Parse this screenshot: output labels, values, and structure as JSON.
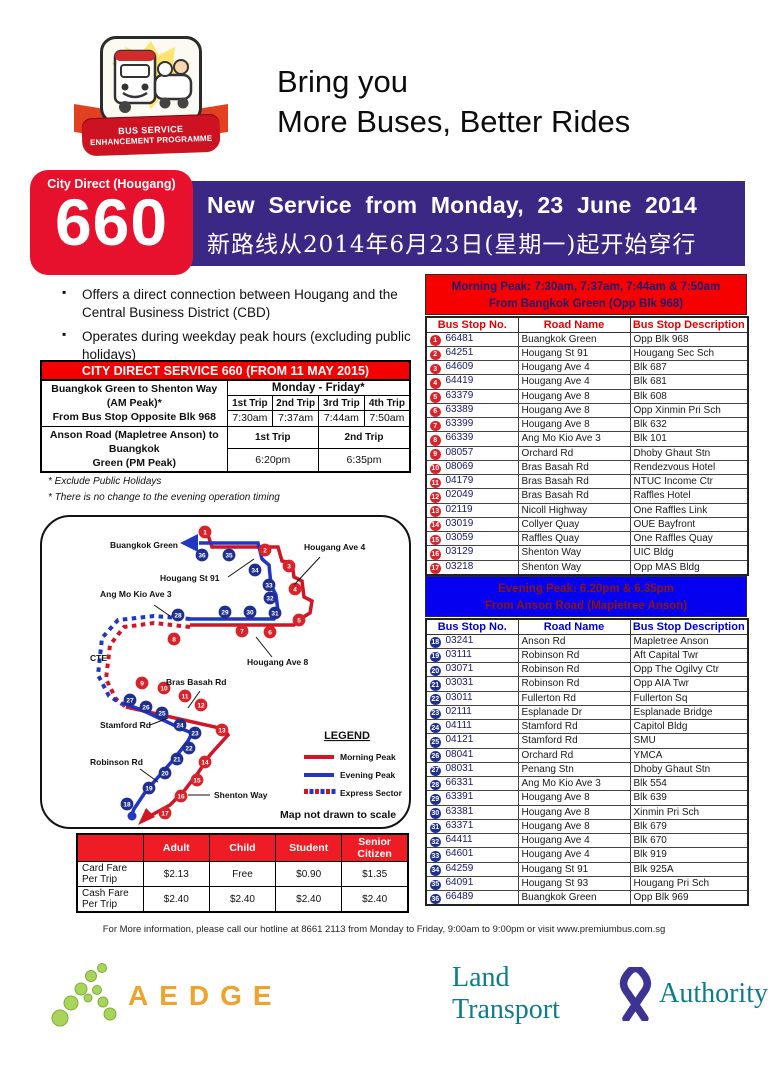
{
  "header": {
    "logo_line1": "BUS SERVICE",
    "logo_line2": "ENHANCEMENT PROGRAMME",
    "tagline_line1": "Bring you",
    "tagline_line2": "More Buses, Better Rides"
  },
  "banner": {
    "service_label": "City Direct (Hougang)",
    "service_number": "660",
    "title_en": "New Service from Monday, 23 June 2014",
    "title_zh": "新路线从2014年6月23日(星期一)起开始穿行",
    "band_color": "#3b2884",
    "badge_color": "#e8112d"
  },
  "intro_bullets": [
    "Offers a direct connection between Hougang and the Central Business District (CBD)",
    "Operates during weekday peak hours (excluding public holidays)"
  ],
  "timetable": {
    "title": "CITY DIRECT SERVICE 660 (FROM 11 MAY 2015)",
    "weekday_header": "Monday - Friday*",
    "am_route_line1": "Buangkok Green to Shenton Way (AM Peak)*",
    "am_route_line2": "From Bus Stop Opposite Blk 968",
    "am_trip_labels": [
      "1st Trip",
      "2nd Trip",
      "3rd Trip",
      "4th Trip"
    ],
    "am_trip_times": [
      "7:30am",
      "7:37am",
      "7:44am",
      "7:50am"
    ],
    "pm_route_line1": "Anson Road (Mapletree Anson) to Buangkok",
    "pm_route_line2": "Green (PM Peak)",
    "pm_trip_labels": [
      "1st Trip",
      "2nd Trip"
    ],
    "pm_trip_times": [
      "6:20pm",
      "6:35pm"
    ],
    "footnotes": [
      "* Exclude Public Holidays",
      "* There is no change to the evening operation timing"
    ]
  },
  "map": {
    "labels": {
      "buangkok": "Buangkok Green",
      "ave4": "Hougang Ave 4",
      "st91": "Hougang St 91",
      "amk": "Ang Mo Kio Ave 3",
      "cte": "CTE",
      "ave8": "Hougang Ave 8",
      "bras": "Bras Basah Rd",
      "stamford": "Stamford Rd",
      "robinson": "Robinson Rd",
      "shenton": "Shenton Way"
    },
    "legend": {
      "title": "LEGEND",
      "items": [
        "Morning Peak",
        "Evening Peak",
        "Express Sector"
      ]
    },
    "note": "Map not drawn to scale",
    "morning_color": "#d01525",
    "evening_color": "#2236c4"
  },
  "fares": {
    "columns": [
      "Adult",
      "Child",
      "Student",
      "Senior Citizen"
    ],
    "rows": [
      {
        "label": "Card Fare Per Trip",
        "values": [
          "$2.13",
          "Free",
          "$0.90",
          "$1.35"
        ]
      },
      {
        "label": "Cash Fare Per Trip",
        "values": [
          "$2.40",
          "$2.40",
          "$2.40",
          "$2.40"
        ]
      }
    ]
  },
  "morning_table": {
    "header_line1": "Morning Peak: 7:30am, 7:37am, 7:44am & 7:50am",
    "header_line2": "From Bangkok Green (Opp Blk 968)",
    "columns": [
      "Bus Stop No.",
      "Road Name",
      "Bus Stop Description"
    ],
    "stops": [
      {
        "seq": 1,
        "no": "66481",
        "road": "Buangkok Green",
        "desc": "Opp Blk 968"
      },
      {
        "seq": 2,
        "no": "64251",
        "road": "Hougang St 91",
        "desc": "Hougang Sec Sch"
      },
      {
        "seq": 3,
        "no": "64609",
        "road": "Hougang Ave 4",
        "desc": "Blk 687"
      },
      {
        "seq": 4,
        "no": "64419",
        "road": "Hougang Ave 4",
        "desc": "Blk 681"
      },
      {
        "seq": 5,
        "no": "63379",
        "road": "Hougang Ave 8",
        "desc": "Blk 608"
      },
      {
        "seq": 6,
        "no": "63389",
        "road": "Hougang Ave 8",
        "desc": "Opp Xinmin Pri Sch"
      },
      {
        "seq": 7,
        "no": "63399",
        "road": "Hougang Ave 8",
        "desc": "Blk 632"
      },
      {
        "seq": 8,
        "no": "66339",
        "road": "Ang Mo Kio Ave 3",
        "desc": "Blk 101"
      },
      {
        "seq": 9,
        "no": "08057",
        "road": "Orchard Rd",
        "desc": "Dhoby Ghaut Stn"
      },
      {
        "seq": 10,
        "no": "08069",
        "road": "Bras Basah Rd",
        "desc": "Rendezvous Hotel"
      },
      {
        "seq": 11,
        "no": "04179",
        "road": "Bras Basah Rd",
        "desc": "NTUC Income Ctr"
      },
      {
        "seq": 12,
        "no": "02049",
        "road": "Bras Basah Rd",
        "desc": "Raffles Hotel"
      },
      {
        "seq": 13,
        "no": "02119",
        "road": "Nicoll Highway",
        "desc": "One Raffles Link"
      },
      {
        "seq": 14,
        "no": "03019",
        "road": "Collyer Quay",
        "desc": "OUE Bayfront"
      },
      {
        "seq": 15,
        "no": "03059",
        "road": "Raffles Quay",
        "desc": "One Raffles Quay"
      },
      {
        "seq": 16,
        "no": "03129",
        "road": "Shenton Way",
        "desc": "UIC Bldg"
      },
      {
        "seq": 17,
        "no": "03218",
        "road": "Shenton Way",
        "desc": "Opp MAS Bldg"
      }
    ]
  },
  "evening_table": {
    "header_line1": "Evening Peak: 6.20pm & 6.35pm",
    "header_line2": "From Anson Road (Mapletree Anson)",
    "columns": [
      "Bus Stop No.",
      "Road Name",
      "Bus Stop Description"
    ],
    "stops": [
      {
        "seq": 18,
        "no": "03241",
        "road": "Anson Rd",
        "desc": "Mapletree Anson"
      },
      {
        "seq": 19,
        "no": "03111",
        "road": "Robinson Rd",
        "desc": "Aft Capital Twr"
      },
      {
        "seq": 20,
        "no": "03071",
        "road": "Robinson Rd",
        "desc": "Opp The Ogilvy Ctr"
      },
      {
        "seq": 21,
        "no": "03031",
        "road": "Robinson Rd",
        "desc": "Opp AIA Twr"
      },
      {
        "seq": 22,
        "no": "03011",
        "road": "Fullerton Rd",
        "desc": "Fullerton Sq"
      },
      {
        "seq": 23,
        "no": "02111",
        "road": "Esplanade Dr",
        "desc": "Esplanade Bridge"
      },
      {
        "seq": 24,
        "no": "04111",
        "road": "Stamford Rd",
        "desc": "Capitol Bldg"
      },
      {
        "seq": 25,
        "no": "04121",
        "road": "Stamford Rd",
        "desc": "SMU"
      },
      {
        "seq": 26,
        "no": "08041",
        "road": "Orchard Rd",
        "desc": "YMCA"
      },
      {
        "seq": 27,
        "no": "08031",
        "road": "Penang Stn",
        "desc": "Dhoby Ghaut Stn"
      },
      {
        "seq": 28,
        "no": "66331",
        "road": "Ang Mo Kio Ave 3",
        "desc": "Blk 554"
      },
      {
        "seq": 29,
        "no": "63391",
        "road": "Hougang Ave 8",
        "desc": "Blk 639"
      },
      {
        "seq": 30,
        "no": "63381",
        "road": "Hougang Ave 8",
        "desc": "Xinmin Pri Sch"
      },
      {
        "seq": 31,
        "no": "63371",
        "road": "Hougang Ave 8",
        "desc": "Blk 679"
      },
      {
        "seq": 32,
        "no": "64411",
        "road": "Hougang Ave 4",
        "desc": "Blk 670"
      },
      {
        "seq": 33,
        "no": "64601",
        "road": "Hougang Ave 4",
        "desc": "Blk 919"
      },
      {
        "seq": 34,
        "no": "64259",
        "road": "Hougang St 91",
        "desc": "Blk 925A"
      },
      {
        "seq": 35,
        "no": "64091",
        "road": "Hougang St 93",
        "desc": "Hougang Pri Sch"
      },
      {
        "seq": 36,
        "no": "66489",
        "road": "Buangkok Green",
        "desc": "Opp Blk 969"
      }
    ]
  },
  "footer": {
    "hotline": "For More information, please call our hotline at 8661 2113 from Monday to Friday, 9:00am to 9:00pm or visit www.premiumbus.com.sg"
  },
  "logos": {
    "aedge": "AEDGE",
    "lta_part1": "Land Transport",
    "lta_part2": "Authority"
  }
}
